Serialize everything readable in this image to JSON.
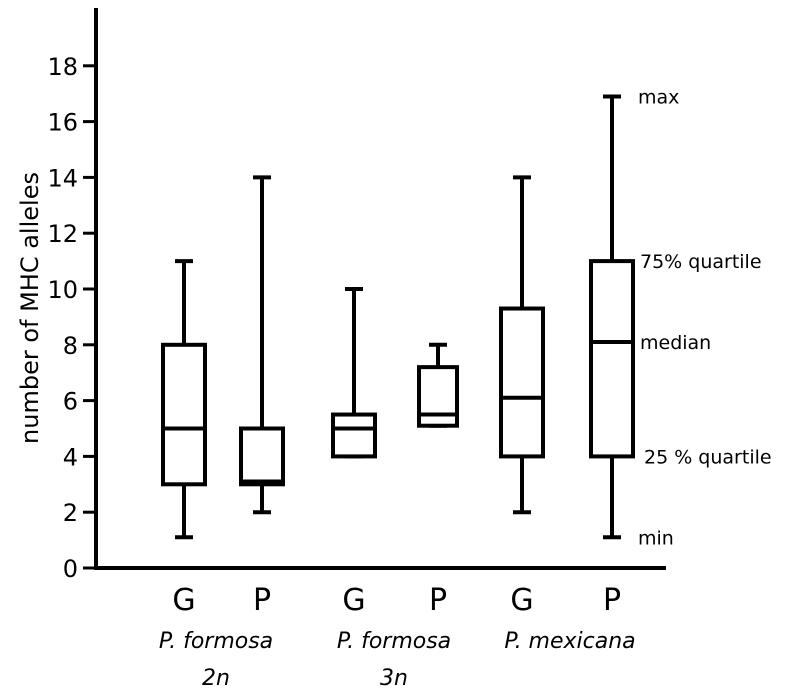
{
  "chart_data": {
    "type": "box",
    "ylabel": "number of MHC alleles",
    "xlabel": "",
    "ylim": [
      0,
      20
    ],
    "yticks": [
      0,
      2,
      4,
      6,
      8,
      10,
      12,
      14,
      16,
      18
    ],
    "grid": false,
    "boxes": [
      {
        "group": "P. formosa 2n",
        "category": "G",
        "min": 1.1,
        "q1": 3.0,
        "median": 5.0,
        "q3": 8.0,
        "max": 11.0
      },
      {
        "group": "P. formosa 2n",
        "category": "P",
        "min": 2.0,
        "q1": 3.0,
        "median": 3.1,
        "q3": 5.0,
        "max": 14.0
      },
      {
        "group": "P. formosa 3n",
        "category": "G",
        "min": 4.0,
        "q1": 4.0,
        "median": 5.0,
        "q3": 5.5,
        "max": 10.0
      },
      {
        "group": "P. formosa 3n",
        "category": "P",
        "min": 5.1,
        "q1": 5.1,
        "median": 5.5,
        "q3": 7.2,
        "max": 8.0
      },
      {
        "group": "P. mexicana",
        "category": "G",
        "min": 2.0,
        "q1": 4.0,
        "median": 6.1,
        "q3": 9.3,
        "max": 14.0
      },
      {
        "group": "P. mexicana",
        "category": "P",
        "min": 1.1,
        "q1": 4.0,
        "median": 8.1,
        "q3": 11.0,
        "max": 16.9
      }
    ],
    "groups": [
      {
        "line1": "P. formosa",
        "line2": "2n"
      },
      {
        "line1": "P. formosa",
        "line2": "3n"
      },
      {
        "line1": "P. mexicana",
        "line2": ""
      }
    ],
    "annotations": [
      {
        "text": "max",
        "value": 16.9
      },
      {
        "text": "75% quartile",
        "value": 11.0
      },
      {
        "text": "median",
        "value": 8.1
      },
      {
        "text": "25 % quartile",
        "value": 4.0
      },
      {
        "text": "min",
        "value": 1.1
      }
    ]
  }
}
